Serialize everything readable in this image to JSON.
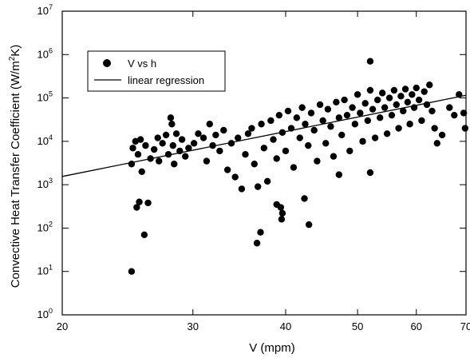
{
  "chart_data": {
    "type": "scatter",
    "title": "",
    "xlabel": "V (mpm)",
    "ylabel_parts": [
      "Convective Heat Transfer Coefficient (W/m",
      "2",
      "K)"
    ],
    "xscale": "log",
    "yscale": "log",
    "xlim": [
      20,
      70
    ],
    "ylim": [
      1,
      10000000
    ],
    "xticks": [
      20,
      30,
      40,
      50,
      60,
      70
    ],
    "xtick_labels": [
      "20",
      "30",
      "40",
      "50",
      "60",
      "70"
    ],
    "yticks": [
      1,
      10,
      100,
      1000,
      10000,
      100000,
      1000000,
      10000000
    ],
    "ytick_labels": [
      {
        "base": "10",
        "exp": "0"
      },
      {
        "base": "10",
        "exp": "1"
      },
      {
        "base": "10",
        "exp": "2"
      },
      {
        "base": "10",
        "exp": "3"
      },
      {
        "base": "10",
        "exp": "4"
      },
      {
        "base": "10",
        "exp": "5"
      },
      {
        "base": "10",
        "exp": "6"
      },
      {
        "base": "10",
        "exp": "7"
      }
    ],
    "grid": false,
    "legend_position": "upper-left",
    "legend": [
      {
        "label": "V vs h",
        "marker": "filled-circle"
      },
      {
        "label": "linear regression",
        "marker": "line"
      }
    ],
    "regression_line": {
      "x": [
        20,
        70
      ],
      "y": [
        1550,
        115000
      ]
    },
    "series": [
      {
        "name": "V vs h",
        "points": [
          [
            24.8,
            10
          ],
          [
            25.8,
            70
          ],
          [
            25.2,
            300
          ],
          [
            26.1,
            380
          ],
          [
            25.4,
            400
          ],
          [
            36.6,
            45
          ],
          [
            37.0,
            80
          ],
          [
            38.9,
            350
          ],
          [
            39.4,
            300
          ],
          [
            39.5,
            160
          ],
          [
            39.6,
            220
          ],
          [
            42.4,
            480
          ],
          [
            43.0,
            120
          ],
          [
            52.0,
            700000
          ],
          [
            52.0,
            1900
          ],
          [
            47.2,
            1700
          ],
          [
            24.8,
            3000
          ],
          [
            24.9,
            7000
          ],
          [
            25.1,
            10000
          ],
          [
            25.3,
            5000
          ],
          [
            25.5,
            11000
          ],
          [
            25.6,
            2000
          ],
          [
            25.9,
            8000
          ],
          [
            26.3,
            4000
          ],
          [
            26.6,
            6500
          ],
          [
            26.9,
            12000
          ],
          [
            27.0,
            3500
          ],
          [
            27.3,
            9000
          ],
          [
            27.6,
            14000
          ],
          [
            27.8,
            5000
          ],
          [
            28.0,
            35000
          ],
          [
            28.1,
            25000
          ],
          [
            28.2,
            8000
          ],
          [
            28.3,
            3000
          ],
          [
            28.5,
            15000
          ],
          [
            28.8,
            6000
          ],
          [
            29.0,
            11000
          ],
          [
            29.3,
            4500
          ],
          [
            29.6,
            7000
          ],
          [
            30.1,
            9000
          ],
          [
            30.5,
            15000
          ],
          [
            31.0,
            12000
          ],
          [
            31.3,
            3500
          ],
          [
            31.6,
            25000
          ],
          [
            31.9,
            8000
          ],
          [
            32.2,
            14000
          ],
          [
            32.6,
            6000
          ],
          [
            33.0,
            18000
          ],
          [
            33.4,
            2200
          ],
          [
            33.8,
            9000
          ],
          [
            34.2,
            1500
          ],
          [
            34.5,
            12000
          ],
          [
            34.9,
            800
          ],
          [
            35.3,
            5000
          ],
          [
            35.6,
            15000
          ],
          [
            36.0,
            20000
          ],
          [
            36.3,
            3000
          ],
          [
            36.7,
            900
          ],
          [
            37.1,
            25000
          ],
          [
            37.4,
            7000
          ],
          [
            37.8,
            1200
          ],
          [
            38.2,
            30000
          ],
          [
            38.5,
            11000
          ],
          [
            38.9,
            4000
          ],
          [
            39.2,
            40000
          ],
          [
            39.6,
            16000
          ],
          [
            40.0,
            6000
          ],
          [
            40.3,
            50000
          ],
          [
            40.7,
            20000
          ],
          [
            41.0,
            2500
          ],
          [
            41.4,
            35000
          ],
          [
            41.8,
            12000
          ],
          [
            42.1,
            60000
          ],
          [
            42.5,
            25000
          ],
          [
            42.9,
            8000
          ],
          [
            43.3,
            45000
          ],
          [
            43.7,
            18000
          ],
          [
            44.1,
            3500
          ],
          [
            44.5,
            70000
          ],
          [
            44.9,
            30000
          ],
          [
            45.3,
            9000
          ],
          [
            45.6,
            55000
          ],
          [
            46.0,
            22000
          ],
          [
            46.4,
            4500
          ],
          [
            46.8,
            80000
          ],
          [
            47.2,
            35000
          ],
          [
            47.6,
            14000
          ],
          [
            48.0,
            90000
          ],
          [
            48.4,
            40000
          ],
          [
            48.8,
            6000
          ],
          [
            49.2,
            60000
          ],
          [
            49.6,
            25000
          ],
          [
            50.0,
            120000
          ],
          [
            50.4,
            45000
          ],
          [
            50.8,
            10000
          ],
          [
            51.2,
            75000
          ],
          [
            51.6,
            30000
          ],
          [
            52.0,
            150000
          ],
          [
            52.4,
            55000
          ],
          [
            52.8,
            12000
          ],
          [
            53.2,
            90000
          ],
          [
            53.6,
            35000
          ],
          [
            54.0,
            130000
          ],
          [
            54.4,
            60000
          ],
          [
            54.8,
            15000
          ],
          [
            55.2,
            100000
          ],
          [
            55.6,
            40000
          ],
          [
            56.0,
            150000
          ],
          [
            56.4,
            70000
          ],
          [
            56.8,
            20000
          ],
          [
            57.2,
            110000
          ],
          [
            57.6,
            50000
          ],
          [
            58.0,
            160000
          ],
          [
            58.4,
            80000
          ],
          [
            58.8,
            25000
          ],
          [
            59.2,
            120000
          ],
          [
            59.6,
            60000
          ],
          [
            60.0,
            170000
          ],
          [
            60.5,
            90000
          ],
          [
            61.0,
            30000
          ],
          [
            61.5,
            140000
          ],
          [
            62.0,
            70000
          ],
          [
            62.5,
            200000
          ],
          [
            63.0,
            50000
          ],
          [
            63.5,
            20000
          ],
          [
            64.0,
            9000
          ],
          [
            65.0,
            14000
          ],
          [
            66.5,
            60000
          ],
          [
            67.5,
            40000
          ],
          [
            68.5,
            120000
          ],
          [
            69.5,
            45000
          ],
          [
            69.8,
            20000
          ]
        ]
      }
    ]
  }
}
